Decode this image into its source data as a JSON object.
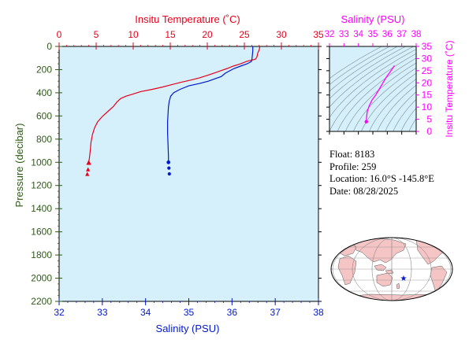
{
  "colors": {
    "temperature": "#e8001c",
    "salinity": "#0018d0",
    "ts_curve": "#ff00ff",
    "pressure_axis": "#2f5a1a",
    "plot_bg": "#d5f0fa",
    "land": "#f5c5c5",
    "ocean": "#ffffff"
  },
  "info": {
    "float_label": "Float:",
    "float_value": "8183",
    "profile_label": "Profile:",
    "profile_value": "259",
    "location_label": "Location:",
    "location_value": "16.0°S  -145.8°E",
    "date_label": "Date:",
    "date_value": "08/28/2025"
  },
  "map": {
    "marker": "float-position-star",
    "lat": -16.0,
    "lon": -145.8
  },
  "chart_data": [
    {
      "type": "line",
      "id": "profile",
      "title_top": "Insitu Temperature (˚C)",
      "xlabel_bottom": "Salinity (PSU)",
      "ylabel": "Pressure (decibar)",
      "xlim_top": [
        0,
        35
      ],
      "xticks_top": [
        0,
        5,
        10,
        15,
        20,
        25,
        30,
        35
      ],
      "xlim_bottom": [
        32,
        38
      ],
      "xticks_bottom": [
        32,
        33,
        34,
        35,
        36,
        37,
        38
      ],
      "ylim": [
        0,
        2200
      ],
      "yticks": [
        0,
        200,
        400,
        600,
        800,
        1000,
        1200,
        1400,
        1600,
        1800,
        2000,
        2200
      ],
      "y_reversed": true,
      "series": [
        {
          "axis": "top",
          "marker": "triangle",
          "points": [
            [
              27.1,
              0
            ],
            [
              27.0,
              30
            ],
            [
              26.8,
              60
            ],
            [
              26.7,
              90
            ],
            [
              26.5,
              110
            ],
            [
              25.3,
              130
            ],
            [
              24.5,
              150
            ],
            [
              23.5,
              170
            ],
            [
              22.7,
              190
            ],
            [
              21.8,
              210
            ],
            [
              20.9,
              230
            ],
            [
              20.0,
              250
            ],
            [
              19.0,
              270
            ],
            [
              17.8,
              290
            ],
            [
              16.4,
              310
            ],
            [
              15.2,
              330
            ],
            [
              14.0,
              350
            ],
            [
              12.6,
              370
            ],
            [
              11.0,
              390
            ],
            [
              10.0,
              410
            ],
            [
              9.0,
              430
            ],
            [
              8.3,
              450
            ],
            [
              7.8,
              480
            ],
            [
              7.3,
              520
            ],
            [
              6.6,
              560
            ],
            [
              5.9,
              600
            ],
            [
              5.2,
              650
            ],
            [
              4.8,
              700
            ],
            [
              4.5,
              760
            ],
            [
              4.3,
              830
            ],
            [
              4.2,
              900
            ],
            [
              4.1,
              960
            ],
            [
              4.0,
              1000
            ]
          ],
          "markers": [
            [
              4.0,
              1000
            ],
            [
              3.9,
              1060
            ],
            [
              3.8,
              1100
            ]
          ]
        },
        {
          "axis": "bottom",
          "marker": "circle",
          "points": [
            [
              36.48,
              0
            ],
            [
              36.48,
              40
            ],
            [
              36.47,
              80
            ],
            [
              36.46,
              110
            ],
            [
              36.45,
              130
            ],
            [
              36.35,
              150
            ],
            [
              36.2,
              170
            ],
            [
              36.05,
              190
            ],
            [
              35.95,
              210
            ],
            [
              35.85,
              230
            ],
            [
              35.75,
              260
            ],
            [
              35.6,
              280
            ],
            [
              35.45,
              300
            ],
            [
              35.25,
              320
            ],
            [
              35.0,
              340
            ],
            [
              34.8,
              370
            ],
            [
              34.65,
              400
            ],
            [
              34.58,
              430
            ],
            [
              34.55,
              470
            ],
            [
              34.53,
              520
            ],
            [
              34.52,
              580
            ],
            [
              34.51,
              650
            ],
            [
              34.51,
              750
            ],
            [
              34.52,
              850
            ],
            [
              34.53,
              950
            ],
            [
              34.53,
              1000
            ]
          ],
          "markers": [
            [
              34.53,
              1000
            ],
            [
              34.54,
              1050
            ],
            [
              34.55,
              1100
            ]
          ]
        }
      ]
    },
    {
      "type": "line",
      "id": "ts",
      "title_top": "Salinity (PSU)",
      "ylabel": "Insitu Temperature (˚C)",
      "xlim": [
        32,
        38
      ],
      "xticks": [
        32,
        33,
        34,
        35,
        36,
        37,
        38
      ],
      "ylim": [
        0,
        35
      ],
      "yticks": [
        0,
        5,
        10,
        15,
        20,
        25,
        30,
        35
      ],
      "series": [
        {
          "points": [
            [
              34.55,
              4.0
            ],
            [
              34.57,
              6.0
            ],
            [
              34.62,
              8.3
            ],
            [
              34.75,
              10.5
            ],
            [
              34.95,
              13.0
            ],
            [
              35.2,
              15.0
            ],
            [
              35.45,
              17.5
            ],
            [
              35.7,
              20.0
            ],
            [
              35.95,
              22.5
            ],
            [
              36.2,
              24.5
            ],
            [
              36.45,
              26.7
            ],
            [
              36.5,
              27.1
            ]
          ],
          "start_marker": [
            34.55,
            4.0
          ]
        }
      ]
    }
  ]
}
